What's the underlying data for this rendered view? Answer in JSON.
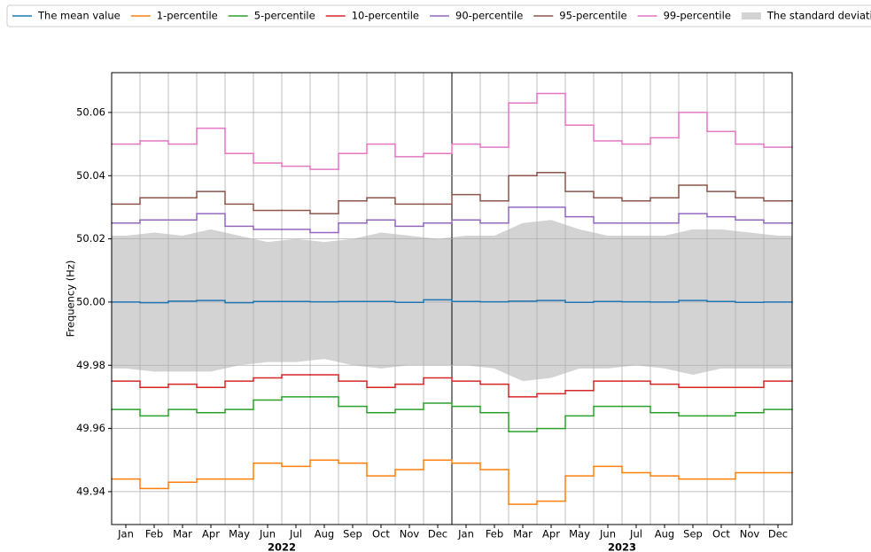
{
  "chart_data": {
    "type": "step",
    "y_label": "Frequency (Hz)",
    "categories": [
      "Jan",
      "Feb",
      "Mar",
      "Apr",
      "May",
      "Jun",
      "Jul",
      "Aug",
      "Sep",
      "Oct",
      "Nov",
      "Dec",
      "Jan",
      "Feb",
      "Mar",
      "Apr",
      "May",
      "Jun",
      "Jul",
      "Aug",
      "Sep",
      "Oct",
      "Nov",
      "Dec"
    ],
    "years": [
      "2022",
      "2023"
    ],
    "ylim": [
      49.9296,
      50.0726
    ],
    "yticks": [
      49.94,
      49.96,
      49.98,
      {
        "value": 50,
        "label": "50.00"
      },
      50.02,
      50.04,
      50.06
    ],
    "grid": true,
    "legend": "top",
    "series": [
      {
        "name": "The mean value",
        "color": "#1f77b4",
        "values": [
          50.0,
          49.9998,
          50.0003,
          50.0005,
          49.9998,
          50.0002,
          50.0002,
          50.0001,
          50.0002,
          50.0002,
          49.9999,
          50.0007,
          50.0002,
          50.0001,
          50.0003,
          50.0005,
          49.9999,
          50.0002,
          50.0001,
          50.0,
          50.0005,
          50.0002,
          49.9999,
          50.0
        ]
      },
      {
        "name": "1-percentile",
        "color": "#ff7f0e",
        "values": [
          49.944,
          49.941,
          49.943,
          49.944,
          49.944,
          49.949,
          49.948,
          49.95,
          49.949,
          49.945,
          49.947,
          49.95,
          49.949,
          49.947,
          49.936,
          49.937,
          49.945,
          49.948,
          49.946,
          49.945,
          49.944,
          49.944,
          49.946,
          49.946
        ]
      },
      {
        "name": "5-percentile",
        "color": "#2ca02c",
        "values": [
          49.966,
          49.964,
          49.966,
          49.965,
          49.966,
          49.969,
          49.97,
          49.97,
          49.967,
          49.965,
          49.966,
          49.968,
          49.967,
          49.965,
          49.959,
          49.96,
          49.964,
          49.967,
          49.967,
          49.965,
          49.964,
          49.964,
          49.965,
          49.966
        ]
      },
      {
        "name": "10-percentile",
        "color": "#d62728",
        "values": [
          49.975,
          49.973,
          49.974,
          49.973,
          49.975,
          49.976,
          49.977,
          49.977,
          49.975,
          49.973,
          49.974,
          49.976,
          49.975,
          49.974,
          49.97,
          49.971,
          49.972,
          49.975,
          49.975,
          49.974,
          49.973,
          49.973,
          49.973,
          49.975
        ]
      },
      {
        "name": "90-percentile",
        "color": "#9467bd",
        "values": [
          50.025,
          50.026,
          50.026,
          50.028,
          50.024,
          50.023,
          50.023,
          50.022,
          50.025,
          50.026,
          50.024,
          50.025,
          50.026,
          50.025,
          50.03,
          50.03,
          50.027,
          50.025,
          50.025,
          50.025,
          50.028,
          50.027,
          50.026,
          50.025
        ]
      },
      {
        "name": "95-percentile",
        "color": "#8c564b",
        "values": [
          50.031,
          50.033,
          50.033,
          50.035,
          50.031,
          50.029,
          50.029,
          50.028,
          50.032,
          50.033,
          50.031,
          50.031,
          50.034,
          50.032,
          50.04,
          50.041,
          50.035,
          50.033,
          50.032,
          50.033,
          50.037,
          50.035,
          50.033,
          50.032
        ]
      },
      {
        "name": "99-percentile",
        "color": "#e377c2",
        "values": [
          50.05,
          50.051,
          50.05,
          50.055,
          50.047,
          50.044,
          50.043,
          50.042,
          50.047,
          50.05,
          50.046,
          50.047,
          50.05,
          50.049,
          50.063,
          50.066,
          50.056,
          50.051,
          50.05,
          50.052,
          50.06,
          50.054,
          50.05,
          50.049
        ]
      },
      {
        "name": "The standard deviation",
        "color": "#d3d3d3",
        "type": "band",
        "upper": [
          50.021,
          50.022,
          50.021,
          50.023,
          50.021,
          50.019,
          50.02,
          50.019,
          50.02,
          50.022,
          50.021,
          50.02,
          50.021,
          50.021,
          50.025,
          50.026,
          50.023,
          50.021,
          50.021,
          50.021,
          50.023,
          50.023,
          50.022,
          50.021
        ],
        "lower": [
          49.979,
          49.978,
          49.978,
          49.978,
          49.98,
          49.981,
          49.981,
          49.982,
          49.98,
          49.979,
          49.98,
          49.98,
          49.98,
          49.979,
          49.975,
          49.976,
          49.979,
          49.979,
          49.98,
          49.979,
          49.977,
          49.979,
          49.979,
          49.979
        ]
      }
    ]
  }
}
